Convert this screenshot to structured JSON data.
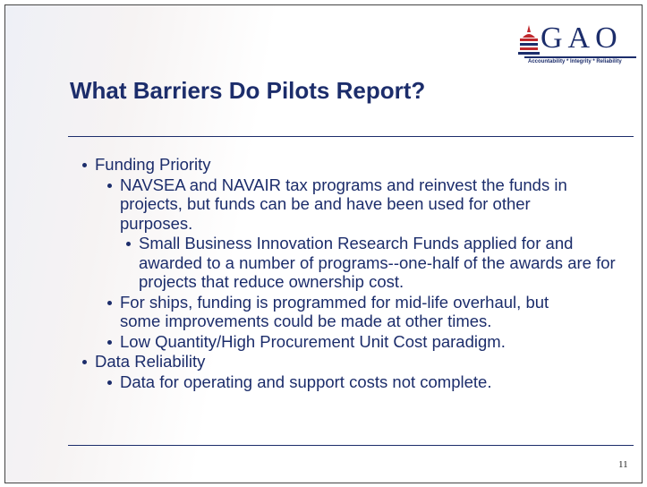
{
  "logo": {
    "text": "GAO",
    "tagline": "Accountability * Integrity * Reliability"
  },
  "title": "What Barriers Do Pilots Report?",
  "bullets": [
    {
      "level": 1,
      "text": "Funding Priority"
    },
    {
      "level": 2,
      "text": "NAVSEA and NAVAIR tax programs and reinvest the funds in projects, but funds can be and have been used for other purposes."
    },
    {
      "level": 3,
      "text": "Small Business Innovation Research Funds applied for and awarded to a number of programs--one-half of the awards are for projects that reduce ownership cost."
    },
    {
      "level": 2,
      "text": "For ships, funding is programmed for mid-life overhaul, but some improvements could be made at other times."
    },
    {
      "level": 2,
      "text": "Low Quantity/High Procurement Unit Cost paradigm."
    },
    {
      "level": 1,
      "text": "Data Reliability"
    },
    {
      "level": 2,
      "text": "Data for operating and support costs not complete."
    }
  ],
  "page_number": "11"
}
